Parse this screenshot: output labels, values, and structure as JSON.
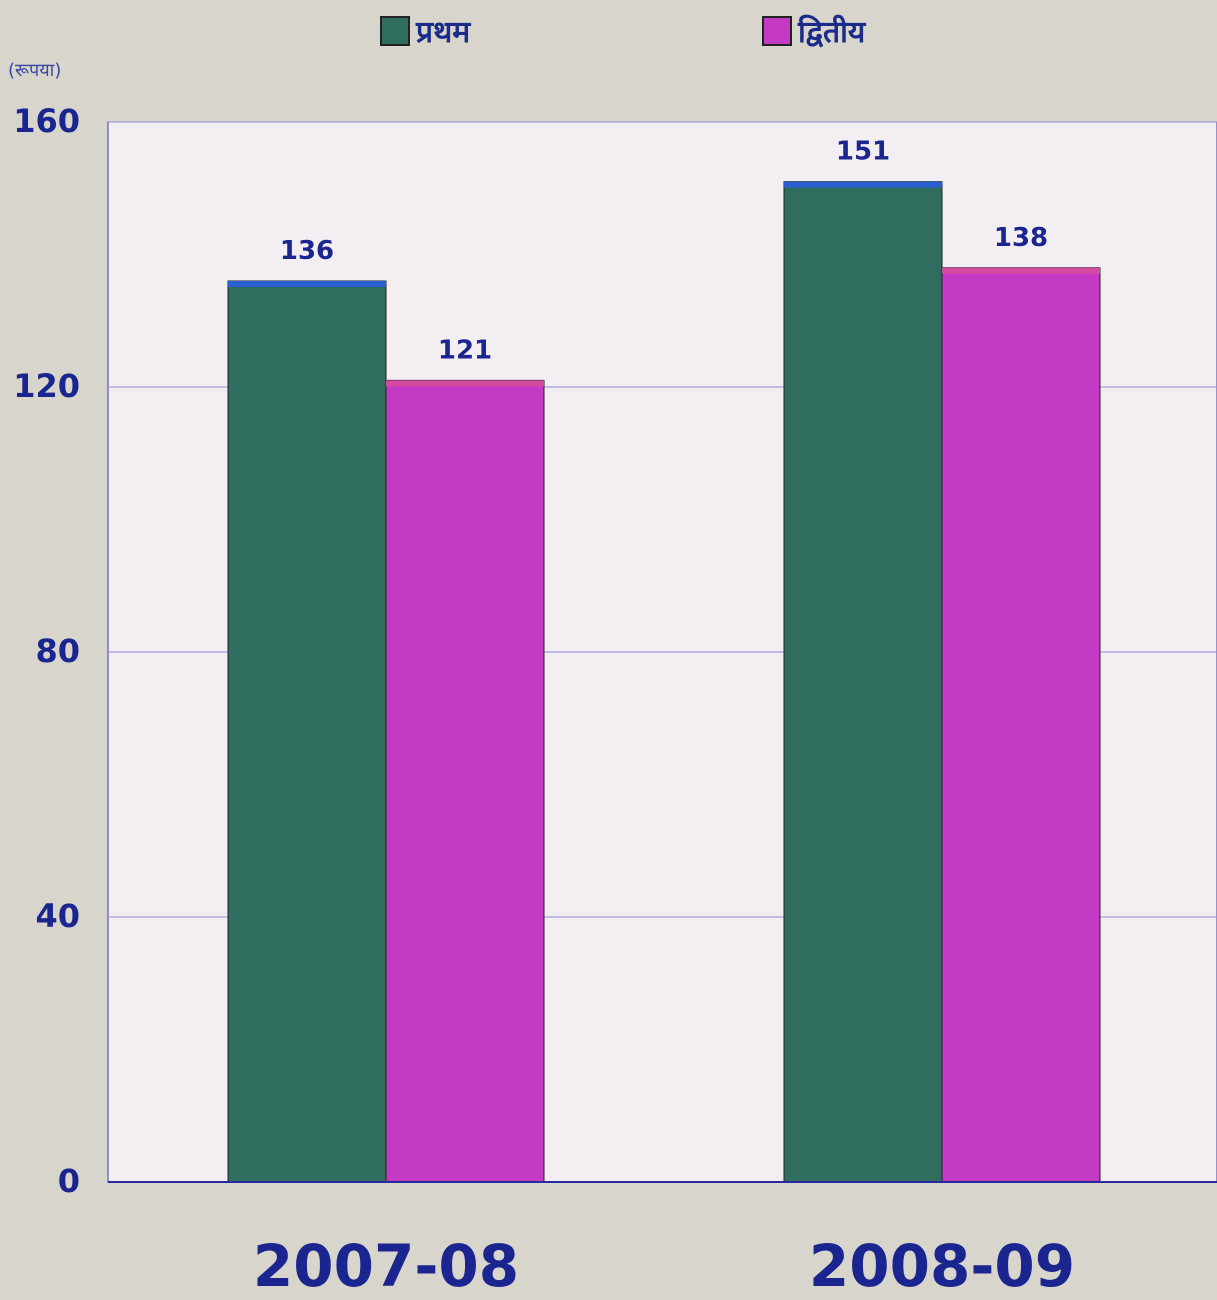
{
  "chart_data": {
    "type": "bar",
    "categories": [
      "2007-08",
      "2008-09"
    ],
    "series": [
      {
        "name": "प्रथम",
        "values": [
          136,
          151
        ],
        "color": "#2f6e5f"
      },
      {
        "name": "द्वितीय",
        "values": [
          121,
          138
        ],
        "color": "#c43ac4"
      }
    ],
    "ylabel": "(रूपया)",
    "ylim": [
      0,
      160
    ],
    "yticks": [
      "0",
      "40",
      "80",
      "120",
      "160"
    ],
    "grid": true,
    "legend": "top"
  }
}
